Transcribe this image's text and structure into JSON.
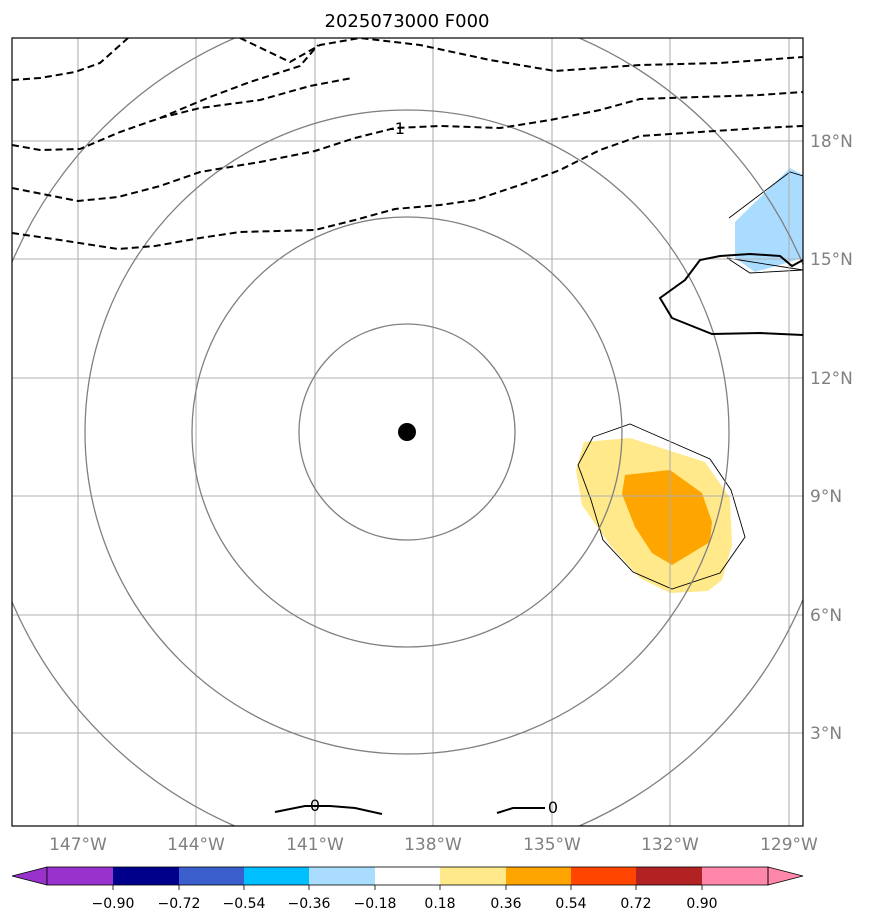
{
  "title": "2025073000 F000",
  "colors": {
    "grid": "#b0b0b0",
    "circle": "#808080",
    "contour": "#000000",
    "positive_weak": "#ffe98a",
    "positive_strong": "#ffa500",
    "negative_weak": "#aadcff"
  },
  "map": {
    "lon_labels": [
      "147°W",
      "144°W",
      "141°W",
      "138°W",
      "135°W",
      "132°W",
      "129°W"
    ],
    "lat_labels": [
      "18°N",
      "15°N",
      "12°N",
      "9°N",
      "6°N",
      "3°N"
    ],
    "center_marker": {
      "lon": -138.7,
      "lat": 10.6
    },
    "contour_labels": [
      "-1",
      "0",
      "0"
    ]
  },
  "colorbar": {
    "colors": [
      "#9932cc",
      "#00008b",
      "#3a5fcd",
      "#00bfff",
      "#aadcff",
      "#ffffff",
      "#ffe98a",
      "#ffa500",
      "#ff4500",
      "#b22222",
      "#ff88aa"
    ],
    "ticks": [
      "−0.90",
      "−0.72",
      "−0.54",
      "−0.36",
      "−0.18",
      "0.18",
      "0.36",
      "0.54",
      "0.72",
      "0.90"
    ],
    "extend": "both"
  }
}
